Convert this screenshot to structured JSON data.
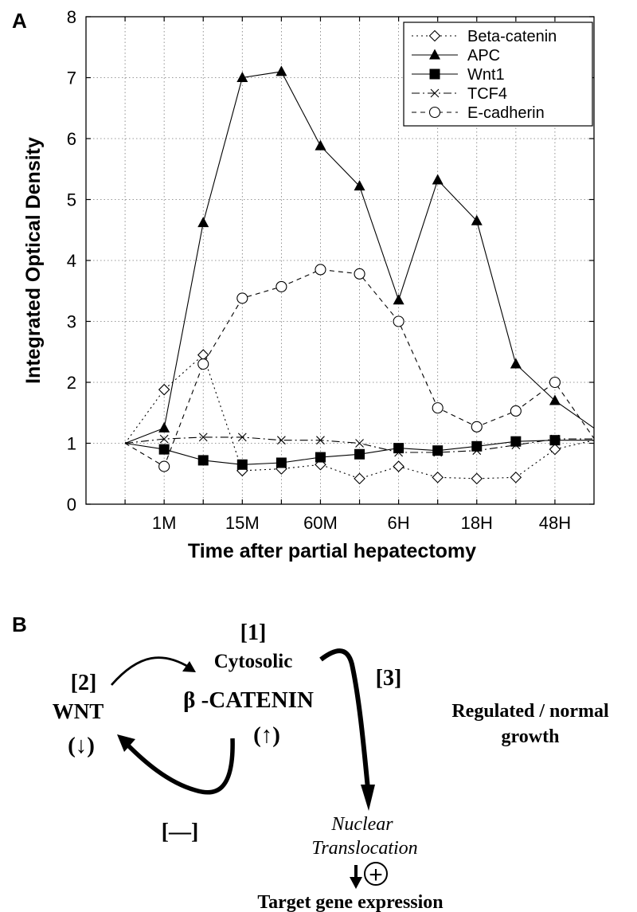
{
  "panel_a": {
    "label": "A",
    "chart_data": {
      "type": "line",
      "title": "",
      "xlabel": "Time after partial hepatectomy",
      "ylabel": "Integrated Optical Density",
      "ylim": [
        0,
        8
      ],
      "xlim": [
        0,
        13
      ],
      "yticks": [
        0,
        1,
        2,
        3,
        4,
        5,
        6,
        7,
        8
      ],
      "x_ticks": [
        {
          "x": 2,
          "label": "1M"
        },
        {
          "x": 4,
          "label": "15M"
        },
        {
          "x": 6,
          "label": "60M"
        },
        {
          "x": 8,
          "label": "6H"
        },
        {
          "x": 10,
          "label": "18H"
        },
        {
          "x": 12,
          "label": "48H"
        }
      ],
      "x": [
        1,
        2,
        3,
        4,
        5,
        6,
        7,
        8,
        9,
        10,
        11,
        12,
        13
      ],
      "grid": true,
      "legend_position": "top-right",
      "series": [
        {
          "name": "Beta-catenin",
          "marker": "diamond-open",
          "dash": "dotted",
          "values": [
            1.0,
            1.88,
            2.45,
            0.55,
            0.58,
            0.65,
            0.42,
            0.62,
            0.44,
            0.42,
            0.44,
            0.9,
            1.05
          ]
        },
        {
          "name": "APC",
          "marker": "triangle-filled",
          "dash": "solid",
          "values": [
            1.0,
            1.25,
            4.62,
            7.0,
            7.1,
            5.88,
            5.22,
            3.35,
            5.32,
            4.65,
            2.3,
            1.7,
            1.25
          ]
        },
        {
          "name": "Wnt1",
          "marker": "square-filled",
          "dash": "solid",
          "values": [
            1.0,
            0.9,
            0.72,
            0.65,
            0.68,
            0.77,
            0.82,
            0.92,
            0.88,
            0.95,
            1.03,
            1.05,
            1.05
          ]
        },
        {
          "name": "TCF4",
          "marker": "cross",
          "dash": "dashdot",
          "values": [
            1.0,
            1.07,
            1.1,
            1.1,
            1.05,
            1.05,
            1.0,
            0.85,
            0.85,
            0.88,
            0.97,
            1.07,
            1.07
          ]
        },
        {
          "name": "E-cadherin",
          "marker": "circle-open",
          "dash": "dashed",
          "values": [
            1.0,
            0.62,
            2.3,
            3.38,
            3.57,
            3.85,
            3.78,
            3.0,
            1.58,
            1.27,
            1.53,
            2.0,
            1.08
          ]
        }
      ]
    }
  },
  "panel_b": {
    "label": "B",
    "step1_tag": "[1]",
    "cytosolic": "Cytosolic",
    "beta_catenin": "β -CATENIN",
    "up_arrow": "(↑)",
    "step2_tag": "[2]",
    "wnt": "WNT",
    "down_arrow": "(↓)",
    "step3_tag": "[3]",
    "inhibit_tag": "[—]",
    "regulated_line1": "Regulated / normal",
    "regulated_line2": "growth",
    "nuclear_line1": "Nuclear",
    "nuclear_line2": "Translocation",
    "plus_symbol": "+",
    "target_gene": "Target gene expression"
  }
}
